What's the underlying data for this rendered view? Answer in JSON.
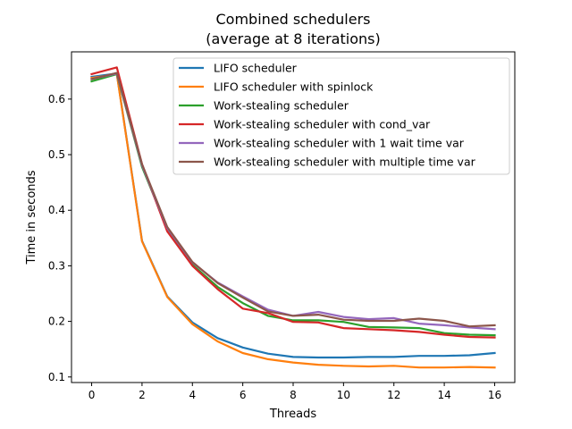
{
  "chart_data": {
    "type": "line",
    "title": "Combined schedulers",
    "subtitle": "(average at 8 iterations)",
    "xlabel": "Threads",
    "ylabel": "Time in seconds",
    "xlim": [
      -0.8,
      16.8
    ],
    "ylim": [
      0.09,
      0.685
    ],
    "xticks": [
      0,
      2,
      4,
      6,
      8,
      10,
      12,
      14,
      16
    ],
    "yticks": [
      0.1,
      0.2,
      0.3,
      0.4,
      0.5,
      0.6
    ],
    "ytick_labels": [
      "0.1",
      "0.2",
      "0.3",
      "0.4",
      "0.5",
      "0.6"
    ],
    "grid": false,
    "legend_position": "top-right",
    "x": [
      0,
      1,
      2,
      3,
      4,
      5,
      6,
      7,
      8,
      9,
      10,
      11,
      12,
      13,
      14,
      15,
      16
    ],
    "series": [
      {
        "name": "LIFO scheduler",
        "color": "#1f77b4",
        "values": [
          0.64,
          0.646,
          0.345,
          0.245,
          0.198,
          0.17,
          0.153,
          0.142,
          0.136,
          0.135,
          0.135,
          0.136,
          0.136,
          0.138,
          0.138,
          0.139,
          0.143
        ]
      },
      {
        "name": "LIFO scheduler with spinlock",
        "color": "#ff7f0e",
        "values": [
          0.638,
          0.645,
          0.344,
          0.244,
          0.195,
          0.164,
          0.143,
          0.132,
          0.126,
          0.122,
          0.12,
          0.119,
          0.12,
          0.117,
          0.117,
          0.118,
          0.117
        ]
      },
      {
        "name": "Work-stealing scheduler",
        "color": "#2ca02c",
        "values": [
          0.632,
          0.645,
          0.478,
          0.367,
          0.302,
          0.262,
          0.233,
          0.21,
          0.202,
          0.202,
          0.199,
          0.19,
          0.189,
          0.188,
          0.179,
          0.176,
          0.175
        ]
      },
      {
        "name": "Work-stealing scheduler with cond_var",
        "color": "#d62728",
        "values": [
          0.645,
          0.657,
          0.483,
          0.362,
          0.3,
          0.258,
          0.223,
          0.215,
          0.199,
          0.198,
          0.188,
          0.186,
          0.184,
          0.181,
          0.176,
          0.172,
          0.171
        ]
      },
      {
        "name": "Work-stealing scheduler with 1 wait time var",
        "color": "#9467bd",
        "values": [
          0.636,
          0.646,
          0.481,
          0.368,
          0.306,
          0.27,
          0.245,
          0.221,
          0.21,
          0.217,
          0.208,
          0.204,
          0.206,
          0.196,
          0.193,
          0.189,
          0.186
        ]
      },
      {
        "name": "Work-stealing scheduler with multiple time var",
        "color": "#8c564b",
        "values": [
          0.636,
          0.647,
          0.483,
          0.37,
          0.307,
          0.269,
          0.243,
          0.218,
          0.21,
          0.212,
          0.203,
          0.201,
          0.201,
          0.205,
          0.201,
          0.191,
          0.193
        ]
      }
    ]
  }
}
